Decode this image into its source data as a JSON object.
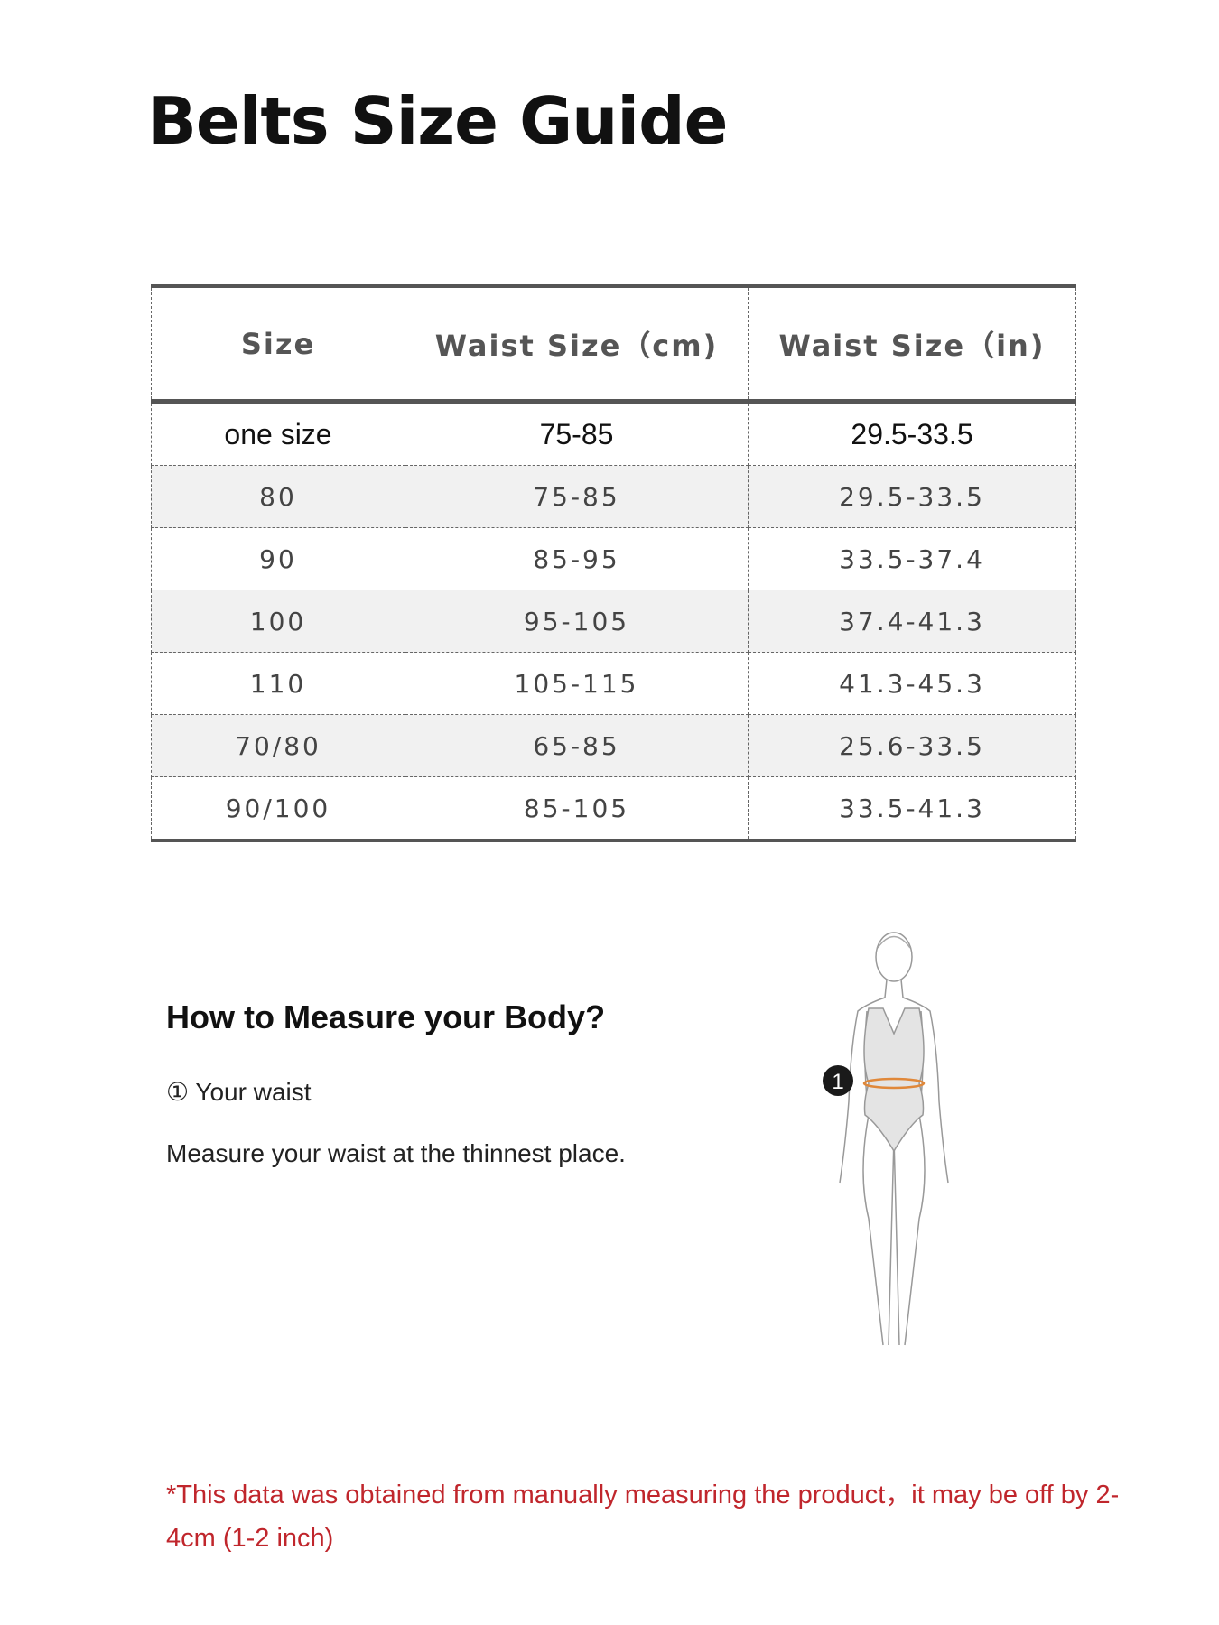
{
  "title": "Belts Size Guide",
  "table": {
    "headers": [
      "Size",
      "Waist Size（cm)",
      "Waist Size（in)"
    ],
    "rows": [
      [
        "one size",
        "75-85",
        "29.5-33.5"
      ],
      [
        "80",
        "75-85",
        "29.5-33.5"
      ],
      [
        "90",
        "85-95",
        "33.5-37.4"
      ],
      [
        "100",
        "95-105",
        "37.4-41.3"
      ],
      [
        "110",
        "105-115",
        "41.3-45.3"
      ],
      [
        "70/80",
        "65-85",
        "25.6-33.5"
      ],
      [
        "90/100",
        "85-105",
        "33.5-41.3"
      ]
    ]
  },
  "measure": {
    "heading": "How to Measure your Body?",
    "step": "① Your waist",
    "description": "Measure your waist at the thinnest place.",
    "marker": "1"
  },
  "note": "*This data was obtained from manually measuring the product，it may be off by 2-4cm (1-2 inch)",
  "colors": {
    "note": "#c0262c",
    "waist_line": "#e0883a",
    "border": "#555555"
  }
}
